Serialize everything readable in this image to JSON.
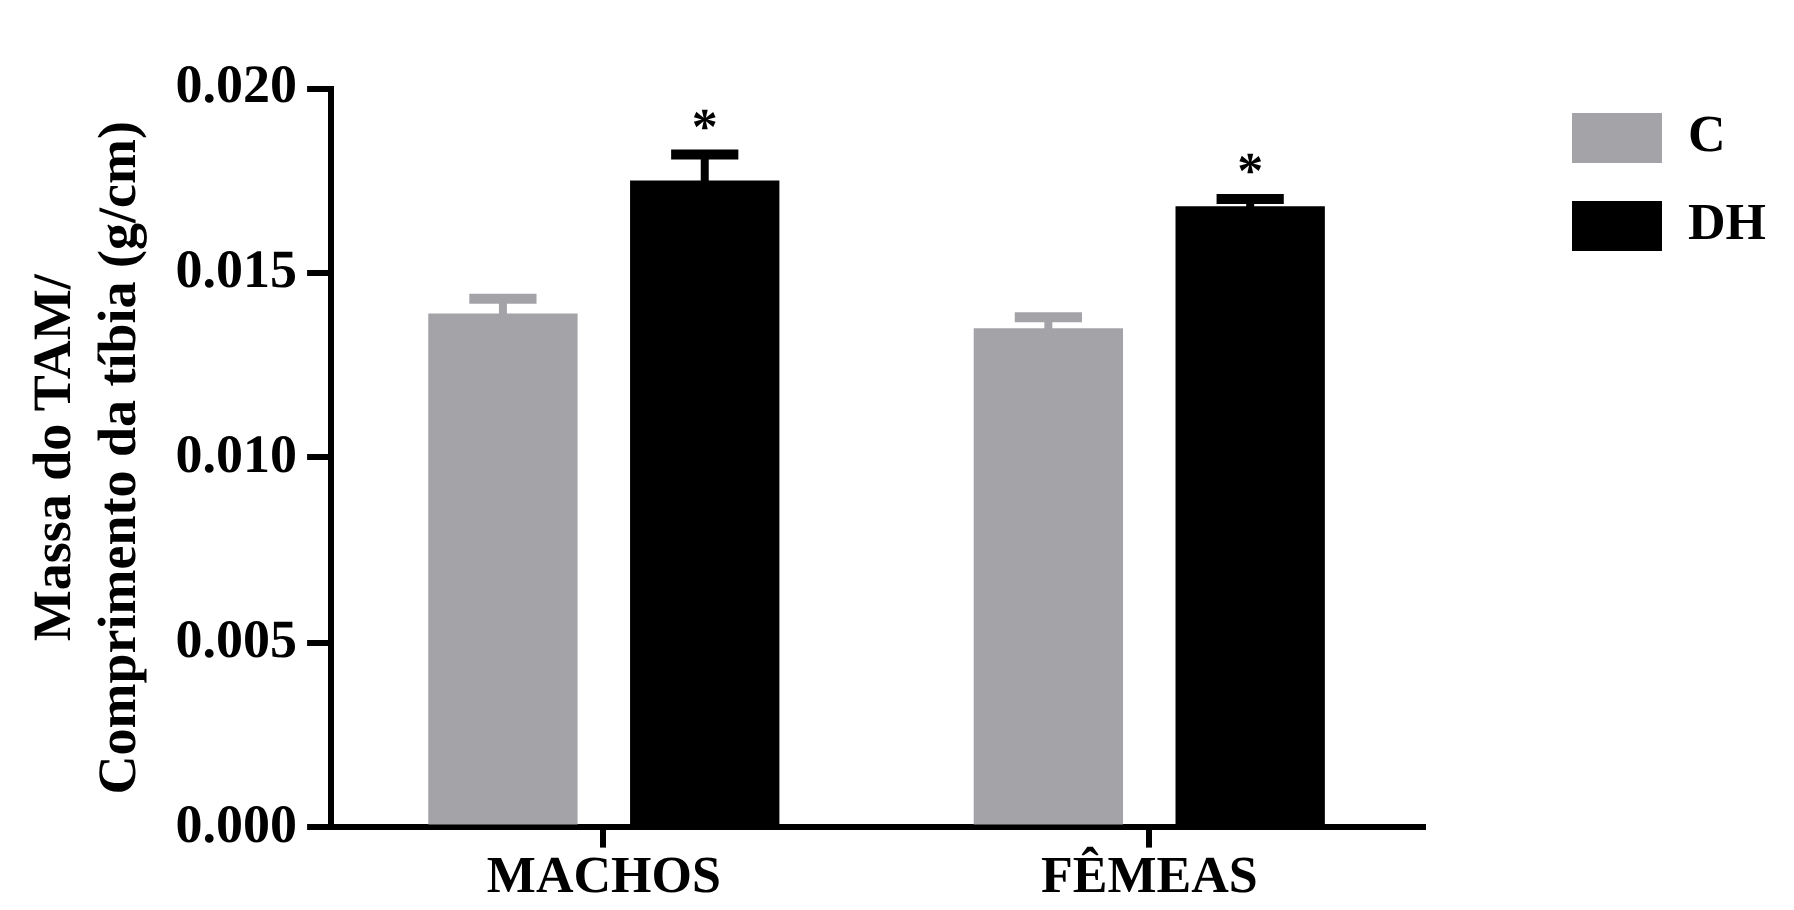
{
  "chart_data": {
    "type": "bar",
    "ylabel": "Massa do TAM/\nComprimento da tíbia (g/cm)",
    "categories": [
      "MACHOS",
      "FÊMEAS"
    ],
    "series": [
      {
        "name": "C",
        "color": "#a4a3a8",
        "values": [
          0.0139,
          0.0135
        ],
        "errors": [
          0.0004,
          0.0003
        ]
      },
      {
        "name": "DH",
        "color": "#000000",
        "values": [
          0.0175,
          0.0168
        ],
        "errors": [
          0.0007,
          0.0002
        ]
      }
    ],
    "ylim": [
      0,
      0.02
    ],
    "yticks": [
      {
        "value": 0,
        "label": "0.000"
      },
      0.005,
      {
        "value": 0.01,
        "label": "0.010"
      },
      0.015,
      {
        "value": 0.02,
        "label": "0.020"
      }
    ],
    "legend": "top right",
    "annotations": [
      "*",
      "*"
    ]
  }
}
